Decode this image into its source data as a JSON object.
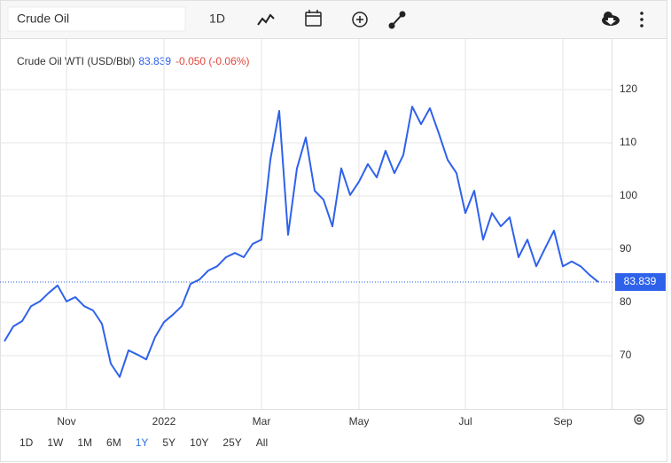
{
  "toolbar": {
    "search": "Crude Oil",
    "interval": "1D"
  },
  "ranges": [
    "1D",
    "1W",
    "1M",
    "6M",
    "1Y",
    "5Y",
    "10Y",
    "25Y",
    "All"
  ],
  "active_range": 4,
  "chart_data": {
    "type": "line",
    "title": "Crude Oil WTI (USD/Bbl)",
    "change": "-0.050 (-0.06%)",
    "color": "#2f62ea",
    "categories": [
      null,
      null,
      null,
      null,
      null,
      null,
      null,
      "Nov",
      null,
      null,
      null,
      null,
      null,
      null,
      null,
      null,
      null,
      null,
      "2022",
      null,
      null,
      null,
      null,
      null,
      null,
      null,
      null,
      null,
      null,
      "Mar",
      null,
      null,
      null,
      null,
      null,
      null,
      null,
      null,
      null,
      null,
      "May",
      null,
      null,
      null,
      null,
      null,
      null,
      null,
      null,
      null,
      null,
      null,
      "Jul",
      null,
      null,
      null,
      null,
      null,
      null,
      null,
      null,
      null,
      null,
      "Sep",
      null,
      null,
      null,
      null
    ],
    "values": [
      72.7,
      75.5,
      76.5,
      79.3,
      80.2,
      81.8,
      83.2,
      80.2,
      81,
      79.3,
      78.5,
      76,
      68.5,
      66,
      71,
      70.2,
      69.3,
      73.5,
      76.3,
      77.7,
      79.3,
      83.5,
      84.3,
      86,
      86.8,
      88.5,
      89.3,
      88.5,
      91,
      91.8,
      106.8,
      116,
      92.7,
      105.2,
      111,
      101,
      99.3,
      94.3,
      105.2,
      100.2,
      102.7,
      106,
      103.5,
      108.5,
      104.3,
      107.7,
      116.8,
      113.5,
      116.5,
      111.8,
      106.8,
      104.3,
      96.8,
      101,
      91.8,
      96.8,
      94.3,
      96,
      88.5,
      91.8,
      86.8,
      90.2,
      93.5,
      86.8,
      87.7,
      86.8,
      85.2,
      83.839
    ],
    "ylim": [
      60,
      129.5
    ],
    "yticks": [
      70,
      80,
      90,
      100,
      110,
      120
    ],
    "grid": true
  }
}
